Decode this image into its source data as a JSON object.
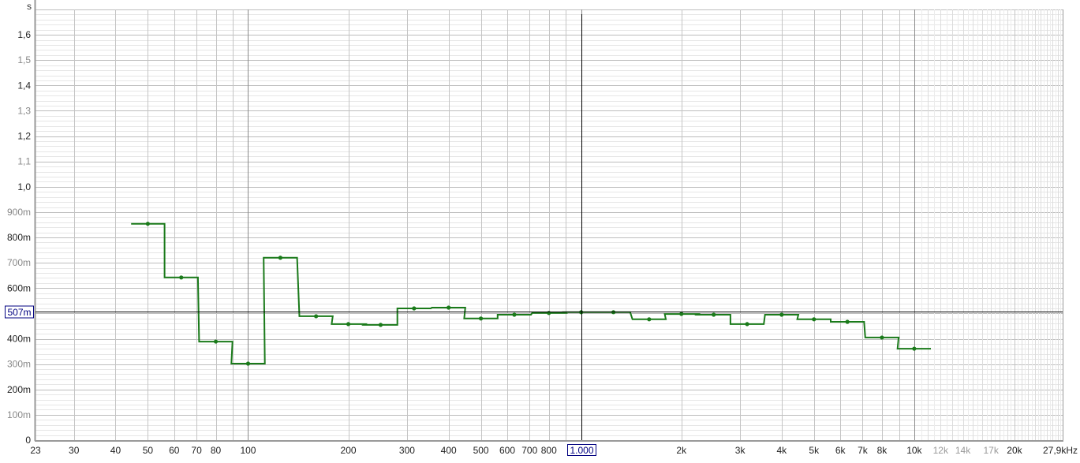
{
  "chart_data": {
    "type": "line",
    "ylabel": "s",
    "xscale": "log",
    "xlim": [
      23,
      27900
    ],
    "ylim": [
      0,
      1.7
    ],
    "grid": true,
    "line_style": "step",
    "series_color": "#1a7a1a",
    "cursor": {
      "x": 1000,
      "y": 0.507,
      "x_label": "1.000",
      "y_label": "507m",
      "color": "#000080"
    },
    "x": [
      50,
      63,
      80,
      100,
      125,
      160,
      200,
      250,
      315,
      400,
      500,
      630,
      800,
      1000,
      1250,
      1600,
      2000,
      2500,
      3150,
      4000,
      5000,
      6300,
      8000,
      10000
    ],
    "series": [
      {
        "values": [
          0.854,
          0.642,
          0.389,
          0.302,
          0.72,
          0.489,
          0.458,
          0.455,
          0.52,
          0.523,
          0.48,
          0.495,
          0.502,
          0.505,
          0.505,
          0.477,
          0.498,
          0.495,
          0.458,
          0.495,
          0.477,
          0.467,
          0.405,
          0.361
        ]
      }
    ],
    "y_ticks": [
      {
        "v": 0,
        "label": "0",
        "major": true
      },
      {
        "v": 0.1,
        "label": "100m",
        "major": false
      },
      {
        "v": 0.2,
        "label": "200m",
        "major": true
      },
      {
        "v": 0.3,
        "label": "300m",
        "major": false
      },
      {
        "v": 0.4,
        "label": "400m",
        "major": true
      },
      {
        "v": 0.6,
        "label": "600m",
        "major": true
      },
      {
        "v": 0.7,
        "label": "700m",
        "major": false
      },
      {
        "v": 0.8,
        "label": "800m",
        "major": true
      },
      {
        "v": 0.9,
        "label": "900m",
        "major": false
      },
      {
        "v": 1.0,
        "label": "1,0",
        "major": true
      },
      {
        "v": 1.1,
        "label": "1,1",
        "major": false
      },
      {
        "v": 1.2,
        "label": "1,2",
        "major": true
      },
      {
        "v": 1.3,
        "label": "1,3",
        "major": false
      },
      {
        "v": 1.4,
        "label": "1,4",
        "major": true
      },
      {
        "v": 1.5,
        "label": "1,5",
        "major": false
      },
      {
        "v": 1.6,
        "label": "1,6",
        "major": true
      }
    ],
    "x_ticks": [
      {
        "v": 23,
        "label": "23"
      },
      {
        "v": 30,
        "label": "30"
      },
      {
        "v": 40,
        "label": "40"
      },
      {
        "v": 50,
        "label": "50"
      },
      {
        "v": 60,
        "label": "60"
      },
      {
        "v": 70,
        "label": "70"
      },
      {
        "v": 80,
        "label": "80"
      },
      {
        "v": 100,
        "label": "100"
      },
      {
        "v": 200,
        "label": "200"
      },
      {
        "v": 300,
        "label": "300"
      },
      {
        "v": 400,
        "label": "400"
      },
      {
        "v": 500,
        "label": "500"
      },
      {
        "v": 600,
        "label": "600"
      },
      {
        "v": 700,
        "label": "700"
      },
      {
        "v": 800,
        "label": "800"
      },
      {
        "v": 2000,
        "label": "2k"
      },
      {
        "v": 3000,
        "label": "3k"
      },
      {
        "v": 4000,
        "label": "4k"
      },
      {
        "v": 5000,
        "label": "5k"
      },
      {
        "v": 6000,
        "label": "6k"
      },
      {
        "v": 7000,
        "label": "7k"
      },
      {
        "v": 8000,
        "label": "8k"
      },
      {
        "v": 10000,
        "label": "10k"
      },
      {
        "v": 12000,
        "label": "12k",
        "dim": true
      },
      {
        "v": 14000,
        "label": "14k",
        "dim": true
      },
      {
        "v": 17000,
        "label": "17k",
        "dim": true
      },
      {
        "v": 20000,
        "label": "20k"
      },
      {
        "v": 27900,
        "label": "27,9kHz"
      }
    ]
  }
}
